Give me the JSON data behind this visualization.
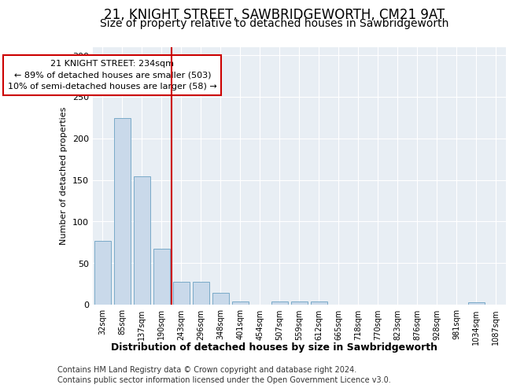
{
  "title1": "21, KNIGHT STREET, SAWBRIDGEWORTH, CM21 9AT",
  "title2": "Size of property relative to detached houses in Sawbridgeworth",
  "xlabel": "Distribution of detached houses by size in Sawbridgeworth",
  "ylabel": "Number of detached properties",
  "categories": [
    "32sqm",
    "85sqm",
    "137sqm",
    "190sqm",
    "243sqm",
    "296sqm",
    "348sqm",
    "401sqm",
    "454sqm",
    "507sqm",
    "559sqm",
    "612sqm",
    "665sqm",
    "718sqm",
    "770sqm",
    "823sqm",
    "876sqm",
    "928sqm",
    "981sqm",
    "1034sqm",
    "1087sqm"
  ],
  "values": [
    77,
    224,
    154,
    67,
    27,
    27,
    14,
    4,
    0,
    4,
    4,
    4,
    0,
    0,
    0,
    0,
    0,
    0,
    0,
    3,
    0
  ],
  "bar_color": "#c9d9ea",
  "bar_edge_color": "#7aaac8",
  "vline_index": 4,
  "vline_color": "#cc0000",
  "annotation_line1": "21 KNIGHT STREET: 234sqm",
  "annotation_line2": "← 89% of detached houses are smaller (503)",
  "annotation_line3": "10% of semi-detached houses are larger (58) →",
  "annotation_box_color": "#cc0000",
  "ylim": [
    0,
    310
  ],
  "yticks": [
    0,
    50,
    100,
    150,
    200,
    250,
    300
  ],
  "footer1": "Contains HM Land Registry data © Crown copyright and database right 2024.",
  "footer2": "Contains public sector information licensed under the Open Government Licence v3.0.",
  "plot_bg_color": "#e8eef4",
  "title1_fontsize": 12,
  "title2_fontsize": 10,
  "annotation_fontsize": 8,
  "footer_fontsize": 7
}
